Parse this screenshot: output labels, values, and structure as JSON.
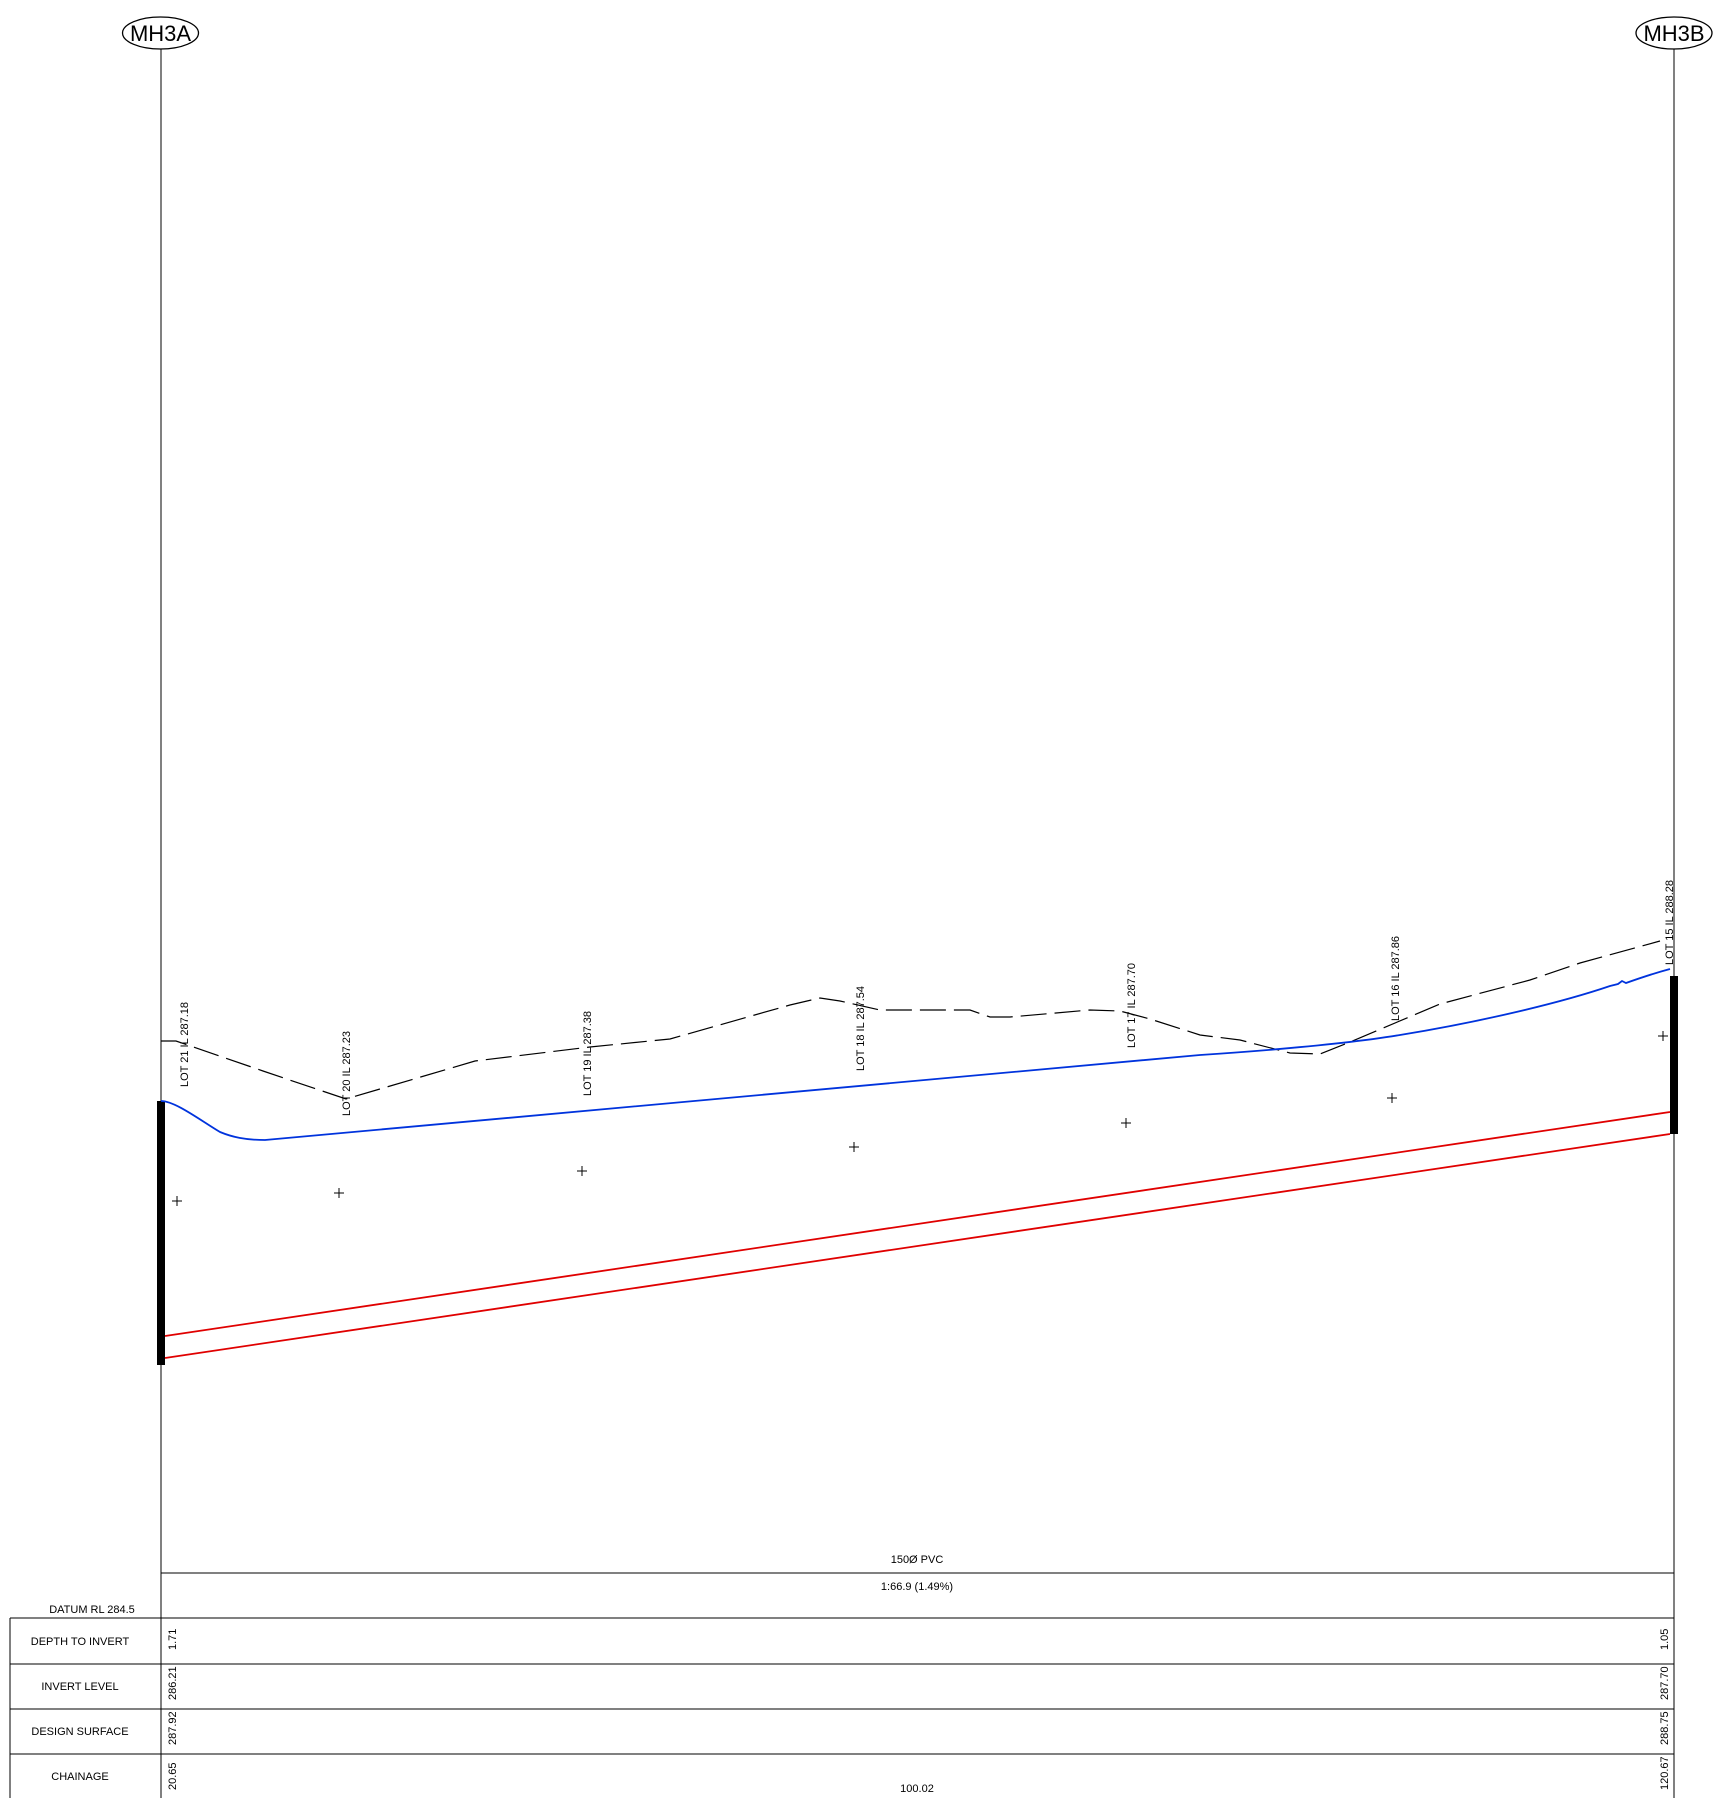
{
  "manholes": {
    "start": "MH3A",
    "end": "MH3B"
  },
  "lots": [
    {
      "label": "LOT 21 IL 287.18"
    },
    {
      "label": "LOT 20 IL 287.23"
    },
    {
      "label": "LOT 19 IL 287.38"
    },
    {
      "label": "LOT 18 IL 287.54"
    },
    {
      "label": "LOT 17 IL 287.70"
    },
    {
      "label": "LOT 16 IL 287.86"
    },
    {
      "label": "LOT 15 IL 288.28"
    }
  ],
  "pipe": {
    "description": "150Ø PVC",
    "grade": "1:66.9 (1.49%)"
  },
  "datum": "DATUM RL 284.5",
  "table": {
    "rows": [
      {
        "label": "DEPTH TO INVERT",
        "start": "1.71",
        "end": "1.05"
      },
      {
        "label": "INVERT LEVEL",
        "start": "286.21",
        "end": "287.70"
      },
      {
        "label": "DESIGN SURFACE",
        "start": "287.92",
        "end": "288.75"
      },
      {
        "label": "CHAINAGE",
        "start": "20.65",
        "end": "120.67",
        "mid": "100.02"
      }
    ]
  },
  "colors": {
    "design_surface": "#0033dd",
    "pipe": "#e00000",
    "existing_surface": "#000000",
    "linework": "#000000"
  }
}
